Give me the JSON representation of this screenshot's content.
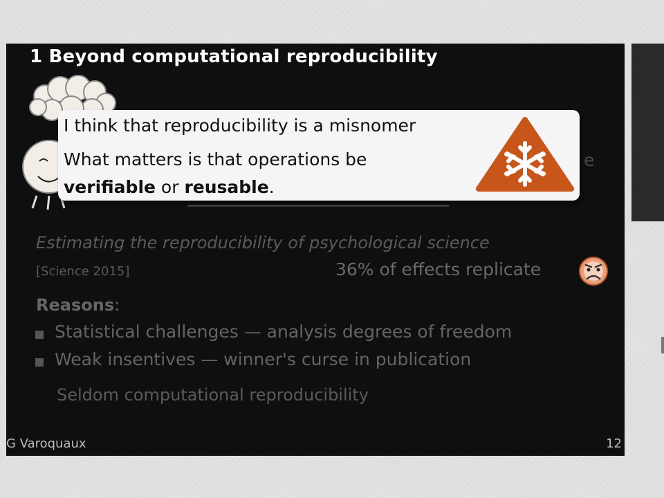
{
  "slide": {
    "title": "1 Beyond computational reproducibility",
    "callout": {
      "line1": "I think that reproducibility is a misnomer",
      "line2_prefix": "What matters is that operations be",
      "word_verifiable": "verifiable",
      "word_or": " or ",
      "word_reusable": "reusable",
      "period": "."
    },
    "obscured_letter": "e",
    "paper_title": "Estimating the reproducibility of psychological science",
    "citation": "[Science 2015]",
    "statistic": "36% of effects replicate",
    "reasons_heading": "Reasons",
    "reasons_colon": ":",
    "reasons": [
      "Statistical challenges — analysis degrees of freedom",
      "Weak insentives — winner's curse in publication"
    ],
    "conclusion": "Seldom computational reproducibility",
    "footer_author": "G Varoquaux",
    "footer_page": "12"
  },
  "colors": {
    "slide_bg": "#0f0f0f",
    "callout_bg": "#f5f5f5",
    "warning_fill": "#c8561a",
    "dim_text": "#5a5a5a"
  },
  "icons": [
    "thinking-person-icon",
    "snowflake-warning-icon",
    "sad-face-icon"
  ]
}
